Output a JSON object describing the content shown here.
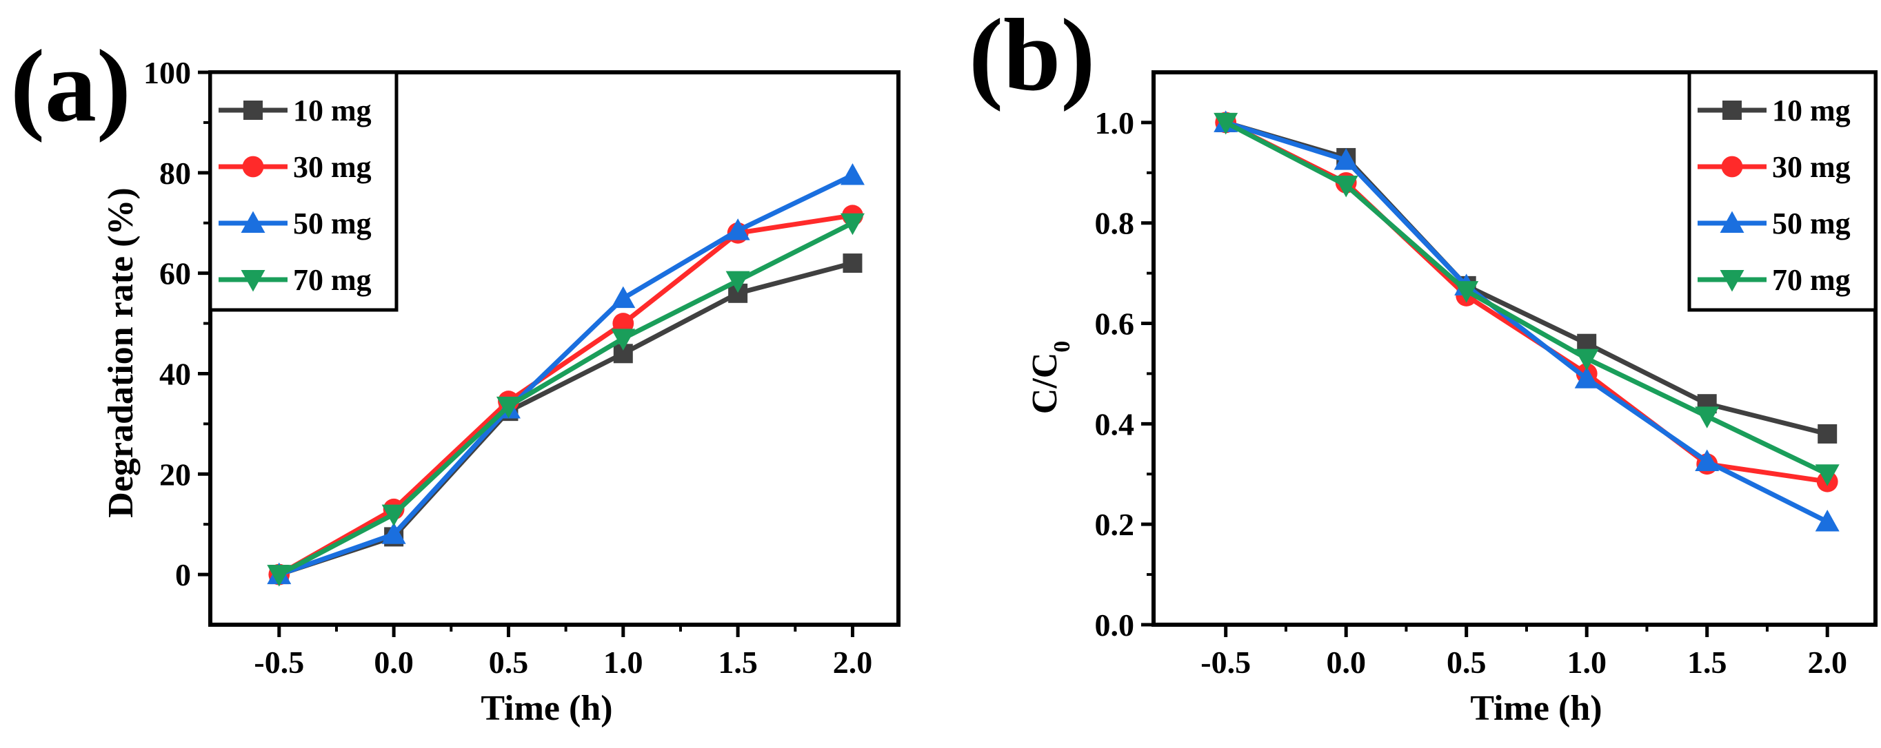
{
  "chart_data": [
    {
      "type": "line",
      "panel_label": "(a)",
      "title": "",
      "xlabel": "Time (h)",
      "ylabel": "Degradation rate (%)",
      "xlim": [
        -0.8,
        2.2
      ],
      "ylim": [
        -10,
        100
      ],
      "xticks": [
        "-0.5",
        "0.0",
        "0.5",
        "1.0",
        "1.5",
        "2.0"
      ],
      "xtick_values": [
        -0.5,
        0.0,
        0.5,
        1.0,
        1.5,
        2.0
      ],
      "yticks": [
        "0",
        "20",
        "40",
        "60",
        "80",
        "100"
      ],
      "ytick_values": [
        0,
        20,
        40,
        60,
        80,
        100
      ],
      "legend_position": "top-left",
      "x": [
        -0.5,
        0.0,
        0.5,
        1.0,
        1.5,
        2.0
      ],
      "series": [
        {
          "name": "10 mg",
          "color": "#404040",
          "marker": "square",
          "values": [
            0,
            7.5,
            32.5,
            44,
            56,
            62
          ]
        },
        {
          "name": "30 mg",
          "color": "#ff2a2a",
          "marker": "circle",
          "values": [
            0,
            13,
            34.5,
            50,
            68,
            71.5
          ]
        },
        {
          "name": "50 mg",
          "color": "#1a6fdf",
          "marker": "triangle-up",
          "values": [
            0,
            8,
            33,
            55,
            68.5,
            79.5
          ]
        },
        {
          "name": "70 mg",
          "color": "#1a9e5a",
          "marker": "triangle-down",
          "values": [
            0,
            12,
            33.5,
            47,
            58.5,
            70
          ]
        }
      ]
    },
    {
      "type": "line",
      "panel_label": "(b)",
      "title": "",
      "xlabel": "Time (h)",
      "ylabel": "C/C",
      "ylabel_sub": "0",
      "xlim": [
        -0.8,
        2.2
      ],
      "ylim": [
        0.0,
        1.1
      ],
      "xticks": [
        "-0.5",
        "0.0",
        "0.5",
        "1.0",
        "1.5",
        "2.0"
      ],
      "xtick_values": [
        -0.5,
        0.0,
        0.5,
        1.0,
        1.5,
        2.0
      ],
      "yticks": [
        "0.0",
        "0.2",
        "0.4",
        "0.6",
        "0.8",
        "1.0"
      ],
      "ytick_values": [
        0.0,
        0.2,
        0.4,
        0.6,
        0.8,
        1.0
      ],
      "legend_position": "top-right",
      "x": [
        -0.5,
        0.0,
        0.5,
        1.0,
        1.5,
        2.0
      ],
      "series": [
        {
          "name": "10 mg",
          "color": "#404040",
          "marker": "square",
          "values": [
            1.0,
            0.93,
            0.675,
            0.56,
            0.44,
            0.38
          ]
        },
        {
          "name": "30 mg",
          "color": "#ff2a2a",
          "marker": "circle",
          "values": [
            1.0,
            0.88,
            0.655,
            0.5,
            0.32,
            0.285
          ]
        },
        {
          "name": "50 mg",
          "color": "#1a6fdf",
          "marker": "triangle-up",
          "values": [
            1.0,
            0.925,
            0.675,
            0.49,
            0.325,
            0.205
          ]
        },
        {
          "name": "70 mg",
          "color": "#1a9e5a",
          "marker": "triangle-down",
          "values": [
            1.0,
            0.875,
            0.665,
            0.53,
            0.415,
            0.3
          ]
        }
      ]
    }
  ]
}
